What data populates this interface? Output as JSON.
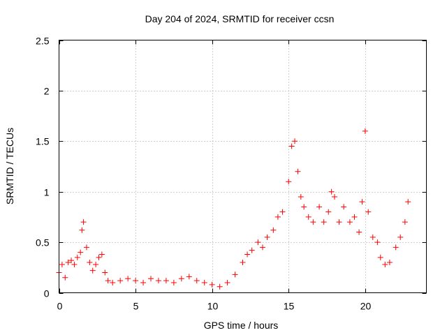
{
  "chart_data": {
    "type": "scatter",
    "title": "Day 204 of 2024, SRMTID for receiver ccsn",
    "xlabel": "GPS time / hours",
    "ylabel": "SRMTID / TECUs",
    "xlim": [
      0,
      24
    ],
    "ylim": [
      0,
      2.5
    ],
    "xticks": [
      0,
      5,
      10,
      15,
      20
    ],
    "yticks": [
      0,
      0.5,
      1,
      1.5,
      2,
      2.5
    ],
    "xtick_labels": [
      "0",
      "5",
      "10",
      "15",
      "20"
    ],
    "ytick_labels": [
      "0",
      "0.5",
      "1",
      "1.5",
      "2",
      "2.5"
    ],
    "grid": true,
    "marker": "+",
    "color": "#ff0000",
    "series": [
      {
        "name": "SRMTID",
        "x": [
          0.0,
          0.2,
          0.4,
          0.6,
          0.8,
          1.0,
          1.2,
          1.4,
          1.5,
          1.6,
          1.8,
          2.0,
          2.2,
          2.4,
          2.6,
          2.8,
          3.0,
          3.2,
          3.5,
          4.0,
          4.5,
          5.0,
          5.5,
          6.0,
          6.5,
          7.0,
          7.5,
          8.0,
          8.5,
          9.0,
          9.5,
          10.0,
          10.5,
          11.0,
          11.5,
          12.0,
          12.3,
          12.6,
          13.0,
          13.3,
          13.6,
          14.0,
          14.3,
          14.6,
          15.0,
          15.2,
          15.4,
          15.6,
          15.8,
          16.0,
          16.3,
          16.6,
          17.0,
          17.3,
          17.6,
          17.8,
          18.0,
          18.3,
          18.6,
          19.0,
          19.3,
          19.6,
          19.8,
          20.0,
          20.2,
          20.5,
          20.8,
          21.0,
          21.3,
          21.6,
          22.0,
          22.3,
          22.6,
          22.8
        ],
        "y": [
          0.2,
          0.28,
          0.15,
          0.3,
          0.32,
          0.28,
          0.35,
          0.4,
          0.62,
          0.7,
          0.45,
          0.3,
          0.22,
          0.28,
          0.35,
          0.38,
          0.2,
          0.12,
          0.1,
          0.12,
          0.14,
          0.12,
          0.1,
          0.14,
          0.12,
          0.12,
          0.1,
          0.14,
          0.16,
          0.12,
          0.1,
          0.08,
          0.06,
          0.1,
          0.18,
          0.3,
          0.38,
          0.42,
          0.5,
          0.45,
          0.55,
          0.62,
          0.75,
          0.8,
          1.1,
          1.45,
          1.5,
          1.2,
          0.95,
          0.85,
          0.75,
          0.7,
          0.85,
          0.7,
          0.8,
          1.0,
          0.95,
          0.7,
          0.85,
          0.7,
          0.75,
          0.6,
          0.9,
          1.6,
          0.8,
          0.55,
          0.5,
          0.35,
          0.28,
          0.3,
          0.45,
          0.55,
          0.7,
          0.9
        ]
      }
    ]
  }
}
